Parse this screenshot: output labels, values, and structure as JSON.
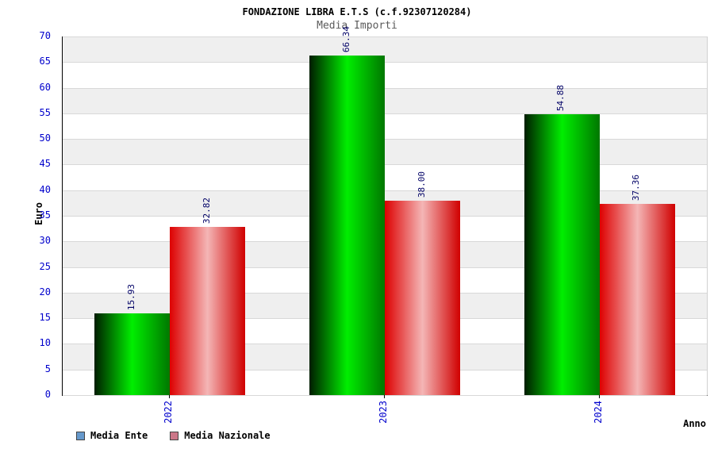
{
  "title": "FONDAZIONE LIBRA E.T.S (c.f.92307120284)",
  "subtitle": "Media Importi",
  "axes": {
    "y_label": "Euro",
    "x_label": "Anno",
    "y_tick_values": [
      0,
      5,
      10,
      15,
      20,
      25,
      30,
      35,
      40,
      45,
      50,
      55,
      60,
      65,
      70
    ]
  },
  "chart_data": {
    "type": "bar",
    "title": "FONDAZIONE LIBRA E.T.S (c.f.92307120284)",
    "subtitle": "Media Importi",
    "xlabel": "Anno",
    "ylabel": "Euro",
    "ylim": [
      0,
      70
    ],
    "ytick_step": 5,
    "grid": "horizontal-bands",
    "legend_position": "bottom-left",
    "categories": [
      "2022",
      "2023",
      "2024"
    ],
    "series": [
      {
        "name": "Media Ente",
        "values": [
          15.93,
          66.34,
          54.88
        ],
        "labels": [
          "15.93",
          "66.34",
          "54.88"
        ],
        "bar_gradient": [
          "#001c00",
          "#00ee00",
          "#007700"
        ],
        "legend_color": "#6699cc"
      },
      {
        "name": "Media Nazionale",
        "values": [
          32.82,
          38.0,
          37.36
        ],
        "labels": [
          "32.82",
          "38.00",
          "37.36"
        ],
        "bar_gradient": [
          "#dd0000",
          "#f4b6b6",
          "#d00000"
        ],
        "legend_color": "#cc7788"
      }
    ]
  },
  "legend": {
    "items": [
      {
        "label": "Media Ente",
        "swatch": "#6699cc"
      },
      {
        "label": "Media Nazionale",
        "swatch": "#cc7788"
      }
    ]
  },
  "colors": {
    "tick_label": "#0000cc",
    "value_label": "#000066",
    "band_gray": "#efefef",
    "band_white": "#ffffff",
    "subtitle": "#5a5a5a"
  }
}
